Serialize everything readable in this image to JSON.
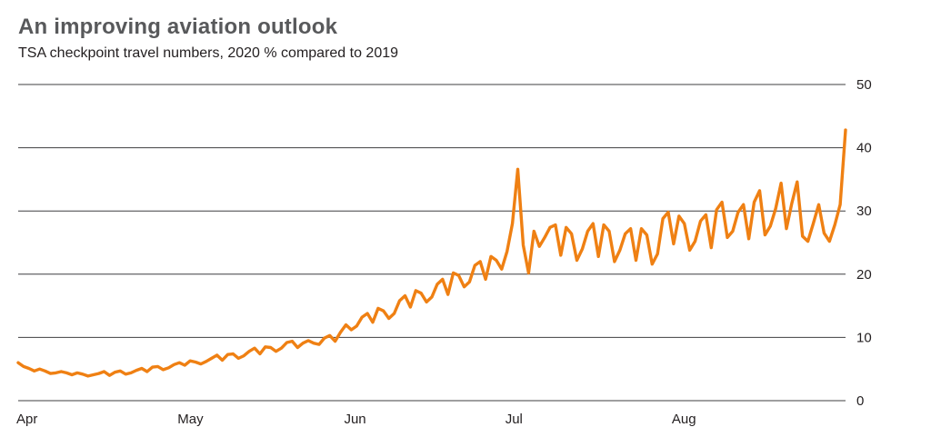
{
  "header": {
    "title": "An improving aviation outlook",
    "subtitle": "TSA checkpoint travel numbers, 2020 % compared to 2019"
  },
  "colors": {
    "line": "#ef8013",
    "grid": "#3f3f41",
    "text": "#231f20",
    "title": "#58595b",
    "background": "#ffffff"
  },
  "chart_data": {
    "type": "line",
    "title": "An improving aviation outlook",
    "subtitle": "TSA checkpoint travel numbers, 2020 % compared to 2019",
    "series_name": "2020 % compared to 2019",
    "frequency": "daily",
    "x_tick_labels": [
      "Apr",
      "May",
      "Jun",
      "Jul",
      "Aug"
    ],
    "x_tick_day_offsets": [
      0,
      30,
      61,
      91,
      122
    ],
    "y_ticks": [
      0,
      10,
      20,
      30,
      40,
      50
    ],
    "ylim": [
      0,
      50
    ],
    "grid": "horizontal",
    "legend": "none",
    "y_axis_side": "right",
    "values": [
      6.0,
      5.4,
      5.1,
      4.7,
      5.0,
      4.7,
      4.3,
      4.4,
      4.6,
      4.4,
      4.1,
      4.4,
      4.2,
      3.9,
      4.1,
      4.3,
      4.6,
      4.0,
      4.5,
      4.7,
      4.2,
      4.4,
      4.8,
      5.1,
      4.6,
      5.3,
      5.4,
      4.9,
      5.2,
      5.7,
      6.0,
      5.6,
      6.3,
      6.1,
      5.8,
      6.2,
      6.7,
      7.2,
      6.4,
      7.3,
      7.4,
      6.7,
      7.1,
      7.8,
      8.3,
      7.4,
      8.5,
      8.4,
      7.8,
      8.3,
      9.2,
      9.4,
      8.4,
      9.1,
      9.5,
      9.1,
      8.9,
      9.9,
      10.3,
      9.4,
      10.8,
      12.0,
      11.2,
      11.8,
      13.2,
      13.8,
      12.4,
      14.6,
      14.2,
      13.0,
      13.8,
      15.8,
      16.6,
      14.8,
      17.4,
      17.0,
      15.6,
      16.4,
      18.4,
      19.2,
      16.8,
      20.2,
      19.8,
      18.0,
      18.8,
      21.4,
      22.0,
      19.2,
      22.8,
      22.2,
      20.8,
      23.6,
      28.0,
      36.6,
      24.6,
      20.2,
      26.8,
      24.4,
      25.8,
      27.4,
      27.8,
      23.0,
      27.4,
      26.4,
      22.2,
      24.0,
      26.8,
      28.0,
      22.8,
      27.8,
      26.8,
      22.0,
      23.8,
      26.4,
      27.2,
      22.2,
      27.2,
      26.2,
      21.6,
      23.2,
      28.8,
      29.8,
      24.8,
      29.2,
      28.0,
      23.8,
      25.2,
      28.4,
      29.4,
      24.2,
      30.2,
      31.4,
      25.8,
      26.8,
      29.8,
      31.0,
      25.6,
      31.4,
      33.2,
      26.2,
      27.6,
      30.4,
      34.4,
      27.2,
      31.2,
      34.6,
      26.0,
      25.2,
      28.0,
      31.0,
      26.5,
      25.2,
      27.8,
      31.0,
      42.8
    ]
  }
}
